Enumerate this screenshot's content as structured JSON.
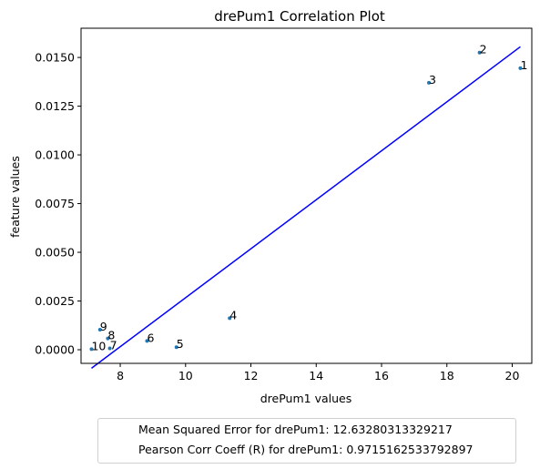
{
  "chart_data": {
    "type": "scatter",
    "title": "drePum1 Correlation Plot",
    "xlabel": "drePum1 values",
    "ylabel": "feature values",
    "xlim": [
      6.8,
      20.6
    ],
    "ylim": [
      -0.0007,
      0.0165
    ],
    "xticks": [
      8,
      10,
      12,
      14,
      16,
      18,
      20
    ],
    "xtick_labels": [
      "8",
      "10",
      "12",
      "14",
      "16",
      "18",
      "20"
    ],
    "yticks": [
      0.0,
      0.0025,
      0.005,
      0.0075,
      0.01,
      0.0125,
      0.015
    ],
    "ytick_labels": [
      "0.0000",
      "0.0025",
      "0.0050",
      "0.0075",
      "0.0100",
      "0.0125",
      "0.0150"
    ],
    "grid": false,
    "points": [
      {
        "label": "1",
        "x": 20.25,
        "y": 0.01445
      },
      {
        "label": "2",
        "x": 19.0,
        "y": 0.01525
      },
      {
        "label": "3",
        "x": 17.45,
        "y": 0.0137
      },
      {
        "label": "4",
        "x": 11.35,
        "y": 0.00162
      },
      {
        "label": "5",
        "x": 9.72,
        "y": 0.00013
      },
      {
        "label": "6",
        "x": 8.82,
        "y": 0.00045
      },
      {
        "label": "7",
        "x": 7.68,
        "y": 7e-05
      },
      {
        "label": "8",
        "x": 7.62,
        "y": 0.00058
      },
      {
        "label": "9",
        "x": 7.38,
        "y": 0.00103
      },
      {
        "label": "10",
        "x": 7.12,
        "y": 3e-05
      }
    ],
    "point_color": "#1f77b4",
    "fit_line": {
      "x": [
        7.12,
        20.25
      ],
      "y": [
        -0.00095,
        0.01555
      ],
      "color": "#0000ff"
    },
    "legend_placement": "below",
    "legend": [
      "Mean Squared Error for drePum1: 12.63280313329217",
      "Pearson Corr Coeff (R) for drePum1: 0.9715162533792897"
    ]
  }
}
